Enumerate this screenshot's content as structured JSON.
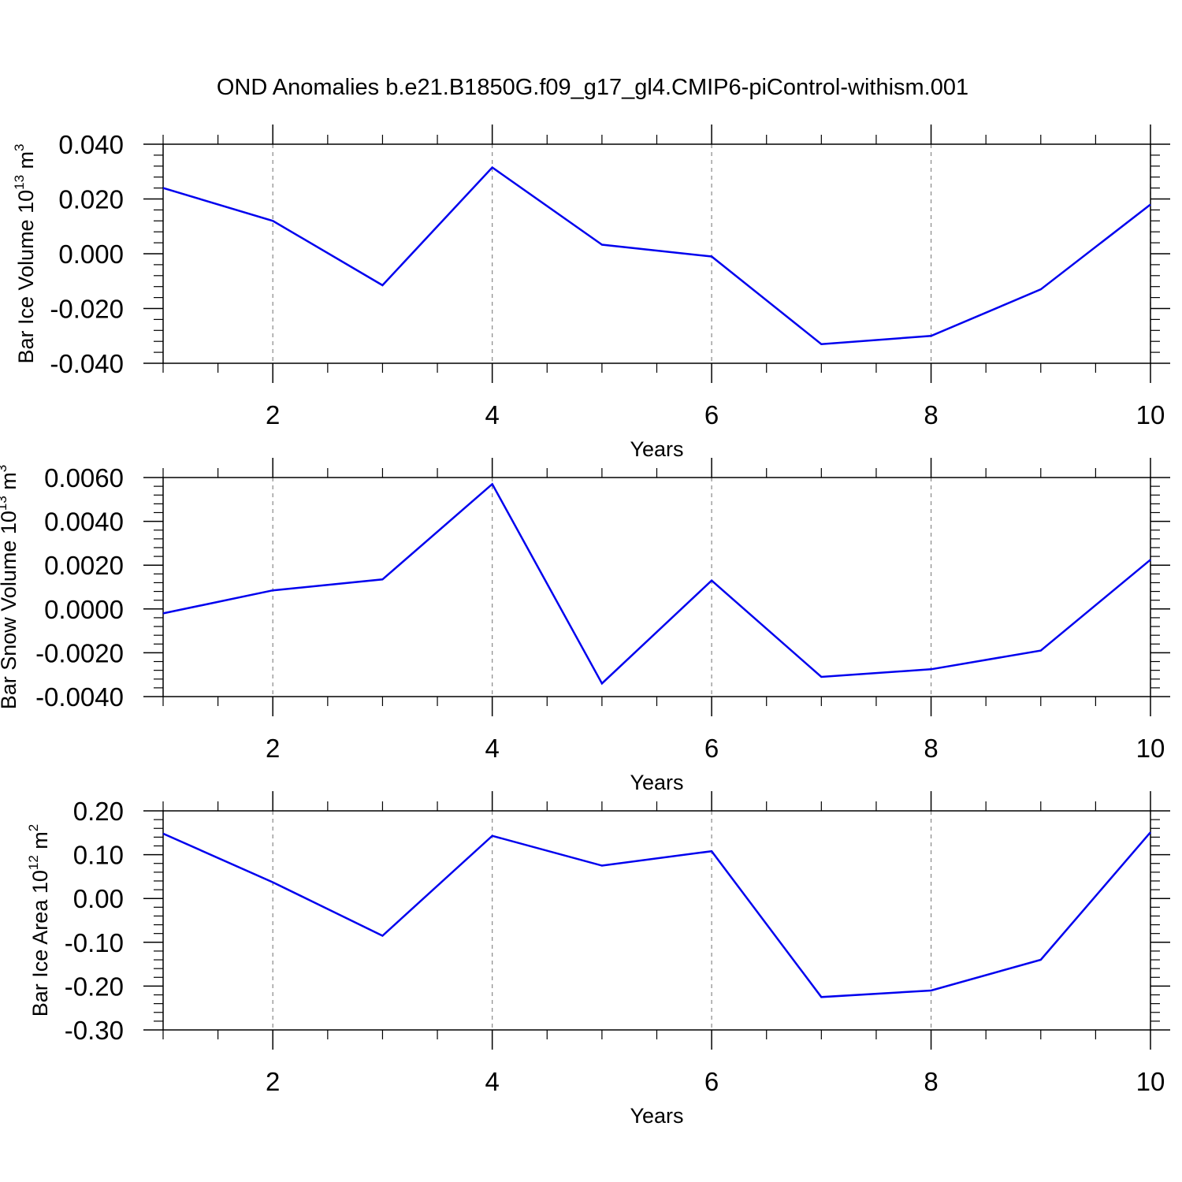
{
  "title": "OND Anomalies b.e21.B1850G.f09_g17_gl4.CMIP6-piControl-withism.001",
  "chart_data": [
    {
      "type": "line",
      "ylabel": "Bar Ice Volume",
      "ylabel_unit_base": "10",
      "ylabel_unit_exp": "13",
      "ylabel_unit_name": "m",
      "ylabel_unit_name_exp": "3",
      "xlabel": "Years",
      "xlim": [
        1,
        10
      ],
      "ylim": [
        -0.04,
        0.04
      ],
      "x_ticks": [
        "2",
        "4",
        "6",
        "8",
        "10"
      ],
      "y_ticks": [
        "0.040",
        "0.020",
        "0.000",
        "-0.020",
        "-0.040"
      ],
      "line_color": "#0000ee",
      "grid": "dashed vertical at major x ticks",
      "series": [
        {
          "x": [
            1,
            2,
            3,
            4,
            5,
            6,
            7,
            8,
            9,
            10
          ],
          "values": [
            0.024,
            0.012,
            -0.0115,
            0.0315,
            0.0033,
            -0.001,
            -0.033,
            -0.03,
            -0.013,
            0.018
          ]
        }
      ]
    },
    {
      "type": "line",
      "ylabel": "Bar Snow Volume",
      "ylabel_unit_base": "10",
      "ylabel_unit_exp": "13",
      "ylabel_unit_name": "m",
      "ylabel_unit_name_exp": "3",
      "xlabel": "Years",
      "xlim": [
        1,
        10
      ],
      "ylim": [
        -0.004,
        0.006
      ],
      "x_ticks": [
        "2",
        "4",
        "6",
        "8",
        "10"
      ],
      "y_ticks": [
        "0.0060",
        "0.0040",
        "0.0020",
        "0.0000",
        "-0.0020",
        "-0.0040"
      ],
      "line_color": "#0000ee",
      "grid": "dashed vertical at major x ticks",
      "series": [
        {
          "x": [
            1,
            2,
            3,
            4,
            5,
            6,
            7,
            8,
            9,
            10
          ],
          "values": [
            -0.0002,
            0.00085,
            0.00135,
            0.0057,
            -0.0034,
            0.0013,
            -0.0031,
            -0.00275,
            -0.0019,
            0.00225
          ]
        }
      ]
    },
    {
      "type": "line",
      "ylabel": "Bar Ice Area",
      "ylabel_unit_base": "10",
      "ylabel_unit_exp": "12",
      "ylabel_unit_name": "m",
      "ylabel_unit_name_exp": "2",
      "xlabel": "Years",
      "xlim": [
        1,
        10
      ],
      "ylim": [
        -0.3,
        0.2
      ],
      "x_ticks": [
        "2",
        "4",
        "6",
        "8",
        "10"
      ],
      "y_ticks": [
        "0.20",
        "0.10",
        "0.00",
        "-0.10",
        "-0.20",
        "-0.30"
      ],
      "line_color": "#0000ee",
      "grid": "dashed vertical at major x ticks",
      "series": [
        {
          "x": [
            1,
            2,
            3,
            4,
            5,
            6,
            7,
            8,
            9,
            10
          ],
          "values": [
            0.148,
            0.037,
            -0.085,
            0.143,
            0.075,
            0.108,
            -0.225,
            -0.21,
            -0.14,
            0.151
          ]
        }
      ]
    }
  ]
}
